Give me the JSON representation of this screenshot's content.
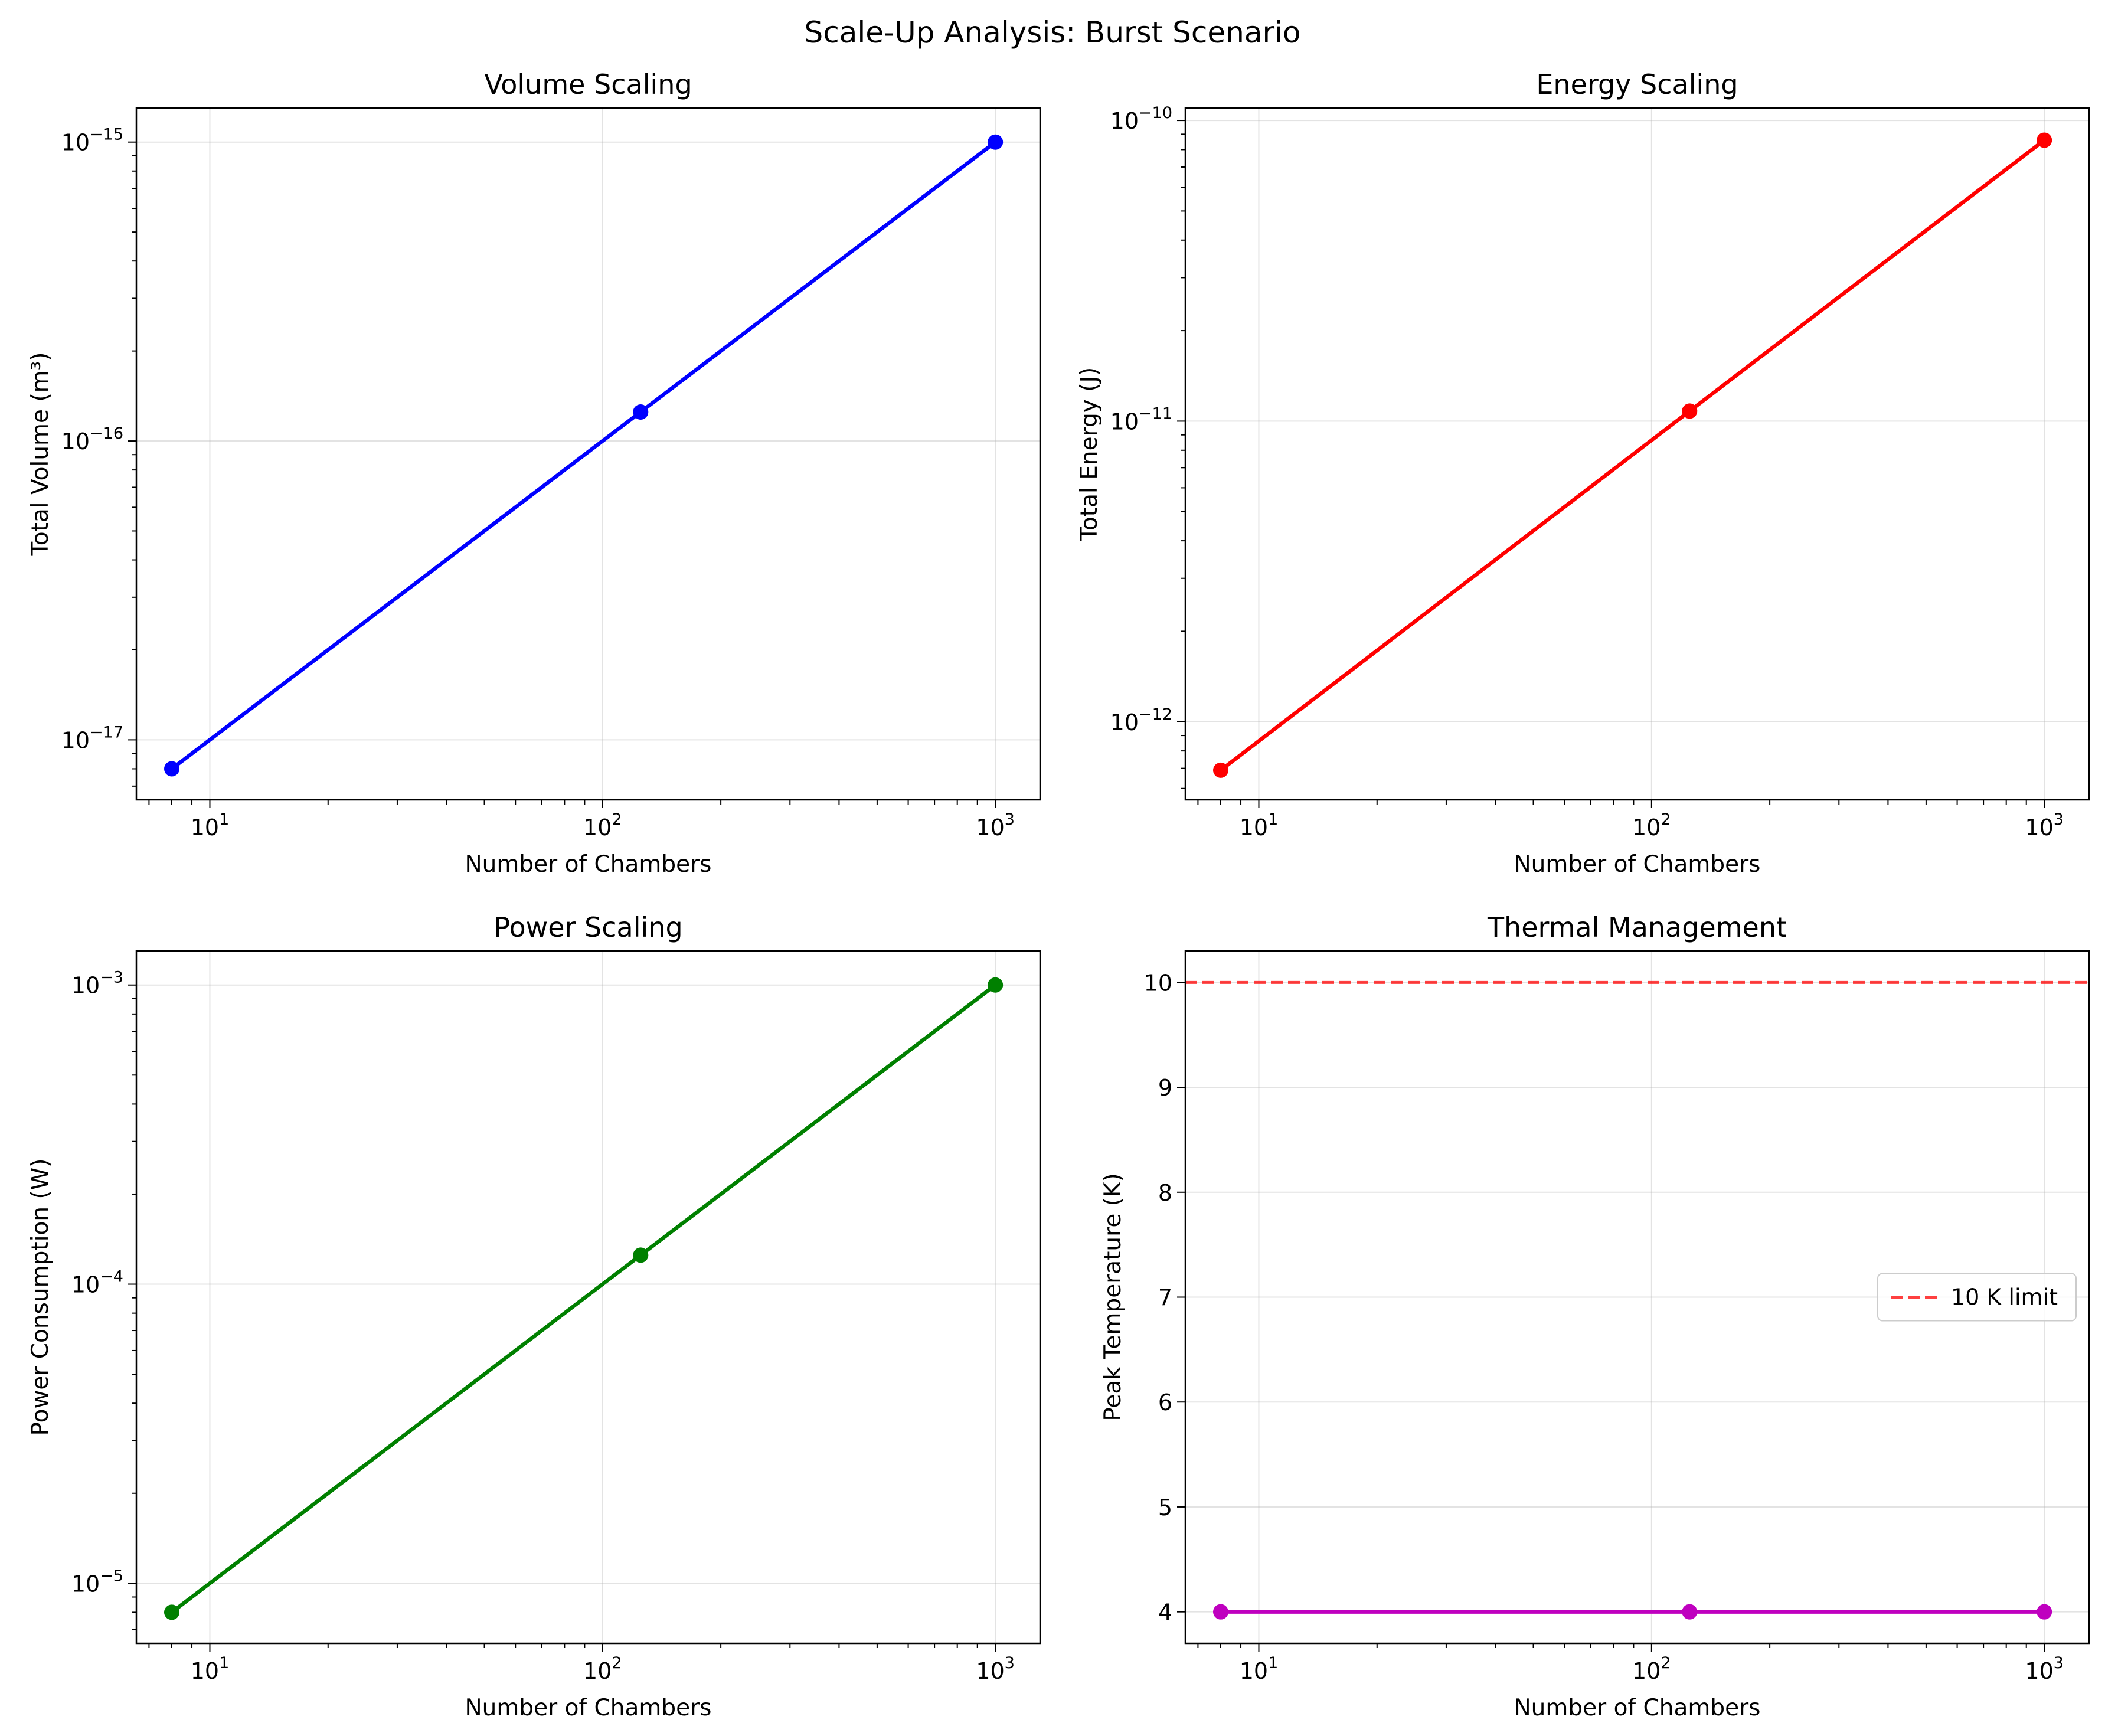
{
  "figure": {
    "suptitle": "Scale-Up Analysis: Burst Scenario"
  },
  "chart_data": [
    {
      "type": "line",
      "title": "Volume Scaling",
      "xlabel": "Number of Chambers",
      "ylabel": "Total Volume (m³)",
      "xscale": "log",
      "yscale": "log",
      "xlim": [
        6.5,
        1300
      ],
      "ylim": [
        6.3e-18,
        1.3e-15
      ],
      "x_ticks": [
        10,
        100,
        1000
      ],
      "y_ticks": [
        1e-17,
        1e-16,
        1e-15
      ],
      "grid": true,
      "series": [
        {
          "x": [
            8,
            125,
            1000
          ],
          "y": [
            8e-18,
            1.25e-16,
            1e-15
          ],
          "color": "#0000ff"
        }
      ]
    },
    {
      "type": "line",
      "title": "Energy Scaling",
      "xlabel": "Number of Chambers",
      "ylabel": "Total Energy (J)",
      "xscale": "log",
      "yscale": "log",
      "xlim": [
        6.5,
        1300
      ],
      "ylim": [
        5.5e-13,
        1.1e-10
      ],
      "x_ticks": [
        10,
        100,
        1000
      ],
      "y_ticks": [
        1e-12,
        1e-11,
        1e-10
      ],
      "grid": true,
      "series": [
        {
          "x": [
            8,
            125,
            1000
          ],
          "y": [
            6.9e-13,
            1.08e-11,
            8.6e-11
          ],
          "color": "#ff0000"
        }
      ]
    },
    {
      "type": "line",
      "title": "Power Scaling",
      "xlabel": "Number of Chambers",
      "ylabel": "Power Consumption (W)",
      "xscale": "log",
      "yscale": "log",
      "xlim": [
        6.5,
        1300
      ],
      "ylim": [
        6.3e-06,
        0.0013
      ],
      "x_ticks": [
        10,
        100,
        1000
      ],
      "y_ticks": [
        1e-05,
        0.0001,
        0.001
      ],
      "grid": true,
      "series": [
        {
          "x": [
            8,
            125,
            1000
          ],
          "y": [
            8e-06,
            0.000125,
            0.001
          ],
          "color": "#008000"
        }
      ]
    },
    {
      "type": "line",
      "title": "Thermal Management",
      "xlabel": "Number of Chambers",
      "ylabel": "Peak Temperature (K)",
      "xscale": "log",
      "yscale": "linear",
      "xlim": [
        6.5,
        1300
      ],
      "ylim": [
        3.7,
        10.3
      ],
      "x_ticks": [
        10,
        100,
        1000
      ],
      "y_ticks": [
        4,
        5,
        6,
        7,
        8,
        9,
        10
      ],
      "grid": true,
      "series": [
        {
          "x": [
            8,
            125,
            1000
          ],
          "y": [
            4,
            4,
            4
          ],
          "color": "#bf00bf"
        }
      ],
      "hlines": [
        {
          "y": 10,
          "label": "10 K limit",
          "color": "#ff0000",
          "style": "dashed"
        }
      ],
      "legend": "center-right"
    }
  ]
}
